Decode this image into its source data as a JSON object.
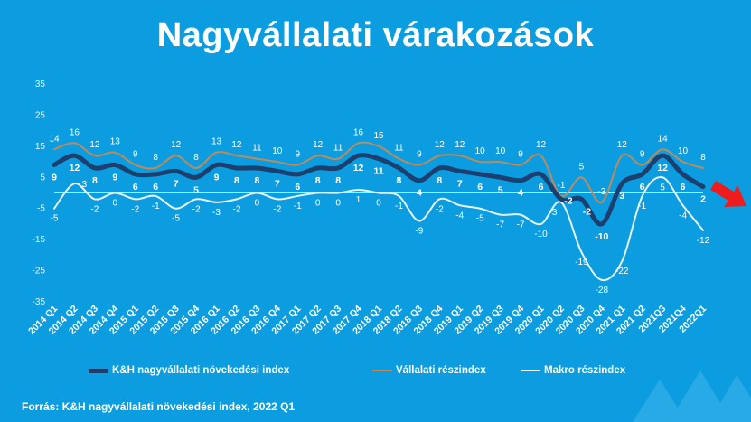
{
  "title": "Nagyvállalati várakozások",
  "source": "Forrás: K&H nagyvállalati növekedési index, 2022 Q1",
  "colors": {
    "background": "#0b9de0",
    "main": "#1b3f6e",
    "vallalati": "#c08a5a",
    "makro": "#e8f3fa",
    "arrow": "#ee1c1c"
  },
  "chart_data": {
    "type": "line",
    "title": "Nagyvállalati várakozások",
    "ylim": [
      -35,
      35
    ],
    "yticks": [
      35,
      25,
      15,
      5,
      -5,
      -15,
      -25,
      -35
    ],
    "legend_position": "bottom",
    "categories": [
      "2014 Q1",
      "2014 Q2",
      "2014 Q3",
      "2014 Q4",
      "2015 Q1",
      "2015 Q2",
      "2015 Q3",
      "2015 Q4",
      "2016 Q1",
      "2016 Q2",
      "2016 Q3",
      "2016 Q4",
      "2017 Q1",
      "2017 Q2",
      "2017 Q3",
      "2017 Q4",
      "2018 Q1",
      "2018 Q2",
      "2018 Q3",
      "2018 Q4",
      "2019 Q1",
      "2019 Q2",
      "2019 Q3",
      "2019 Q4",
      "2020 Q1",
      "2020 Q2",
      "2020 Q3",
      "2020 Q4",
      "2021 Q1",
      "2021 Q2",
      "2021Q3",
      "2021Q4",
      "2022Q1"
    ],
    "series": [
      {
        "name": "K&H nagyvállalati növekedési index",
        "values": [
          9,
          12,
          8,
          9,
          6,
          6,
          7,
          5,
          9,
          8,
          8,
          7,
          6,
          8,
          8,
          12,
          11,
          8,
          4,
          8,
          7,
          6,
          5,
          4,
          6,
          -2,
          -2,
          -10,
          3,
          6,
          12,
          6,
          2
        ]
      },
      {
        "name": "Vállalati részindex",
        "values": [
          14,
          16,
          12,
          13,
          9,
          8,
          12,
          8,
          13,
          12,
          11,
          10,
          9,
          12,
          11,
          16,
          15,
          11,
          9,
          12,
          12,
          10,
          10,
          9,
          12,
          -1,
          5,
          -3,
          12,
          9,
          14,
          10,
          8
        ]
      },
      {
        "name": "Makro részindex",
        "values": [
          -5,
          3,
          -2,
          0,
          -2,
          -1,
          -5,
          -2,
          -3,
          -2,
          0,
          -2,
          -1,
          0,
          0,
          1,
          0,
          -1,
          -9,
          -2,
          -4,
          -5,
          -7,
          -7,
          -10,
          -3,
          -19,
          -28,
          -22,
          -1,
          5,
          -4,
          -12
        ]
      }
    ]
  }
}
